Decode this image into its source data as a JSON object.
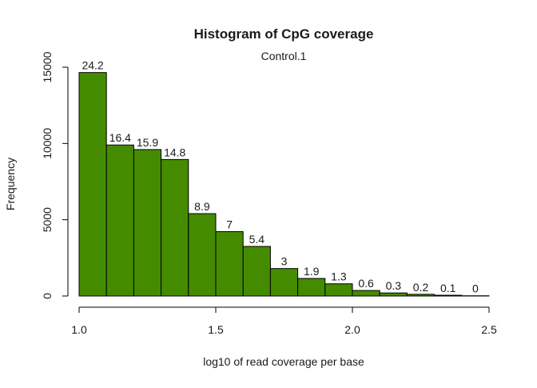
{
  "chart_data": {
    "type": "bar",
    "title": "Histogram of CpG coverage",
    "subtitle": "Control.1",
    "xlabel": "log10 of read coverage per base",
    "ylabel": "Frequency",
    "xlim": [
      1.0,
      2.5
    ],
    "ylim": [
      0,
      15000
    ],
    "xticks": [
      1.0,
      1.5,
      2.0,
      2.5
    ],
    "xtick_labels": [
      "1.0",
      "1.5",
      "2.0",
      "2.5"
    ],
    "yticks": [
      0,
      5000,
      10000,
      15000
    ],
    "ytick_labels": [
      "0",
      "5000",
      "10000",
      "15000"
    ],
    "bar_color": "#458b00",
    "grid": false,
    "bins": [
      {
        "x0": 1.0,
        "x1": 1.1,
        "count": 14650,
        "label": "24.2"
      },
      {
        "x0": 1.1,
        "x1": 1.2,
        "count": 9900,
        "label": "16.4"
      },
      {
        "x0": 1.2,
        "x1": 1.3,
        "count": 9600,
        "label": "15.9"
      },
      {
        "x0": 1.3,
        "x1": 1.4,
        "count": 8950,
        "label": "14.8"
      },
      {
        "x0": 1.4,
        "x1": 1.5,
        "count": 5400,
        "label": "8.9"
      },
      {
        "x0": 1.5,
        "x1": 1.6,
        "count": 4220,
        "label": "7"
      },
      {
        "x0": 1.6,
        "x1": 1.7,
        "count": 3250,
        "label": "5.4"
      },
      {
        "x0": 1.7,
        "x1": 1.8,
        "count": 1800,
        "label": "3"
      },
      {
        "x0": 1.8,
        "x1": 1.9,
        "count": 1150,
        "label": "1.9"
      },
      {
        "x0": 1.9,
        "x1": 2.0,
        "count": 800,
        "label": "1.3"
      },
      {
        "x0": 2.0,
        "x1": 2.1,
        "count": 360,
        "label": "0.6"
      },
      {
        "x0": 2.1,
        "x1": 2.2,
        "count": 200,
        "label": "0.3"
      },
      {
        "x0": 2.2,
        "x1": 2.3,
        "count": 110,
        "label": "0.2"
      },
      {
        "x0": 2.3,
        "x1": 2.4,
        "count": 50,
        "label": "0.1"
      },
      {
        "x0": 2.4,
        "x1": 2.5,
        "count": 15,
        "label": "0"
      }
    ]
  }
}
